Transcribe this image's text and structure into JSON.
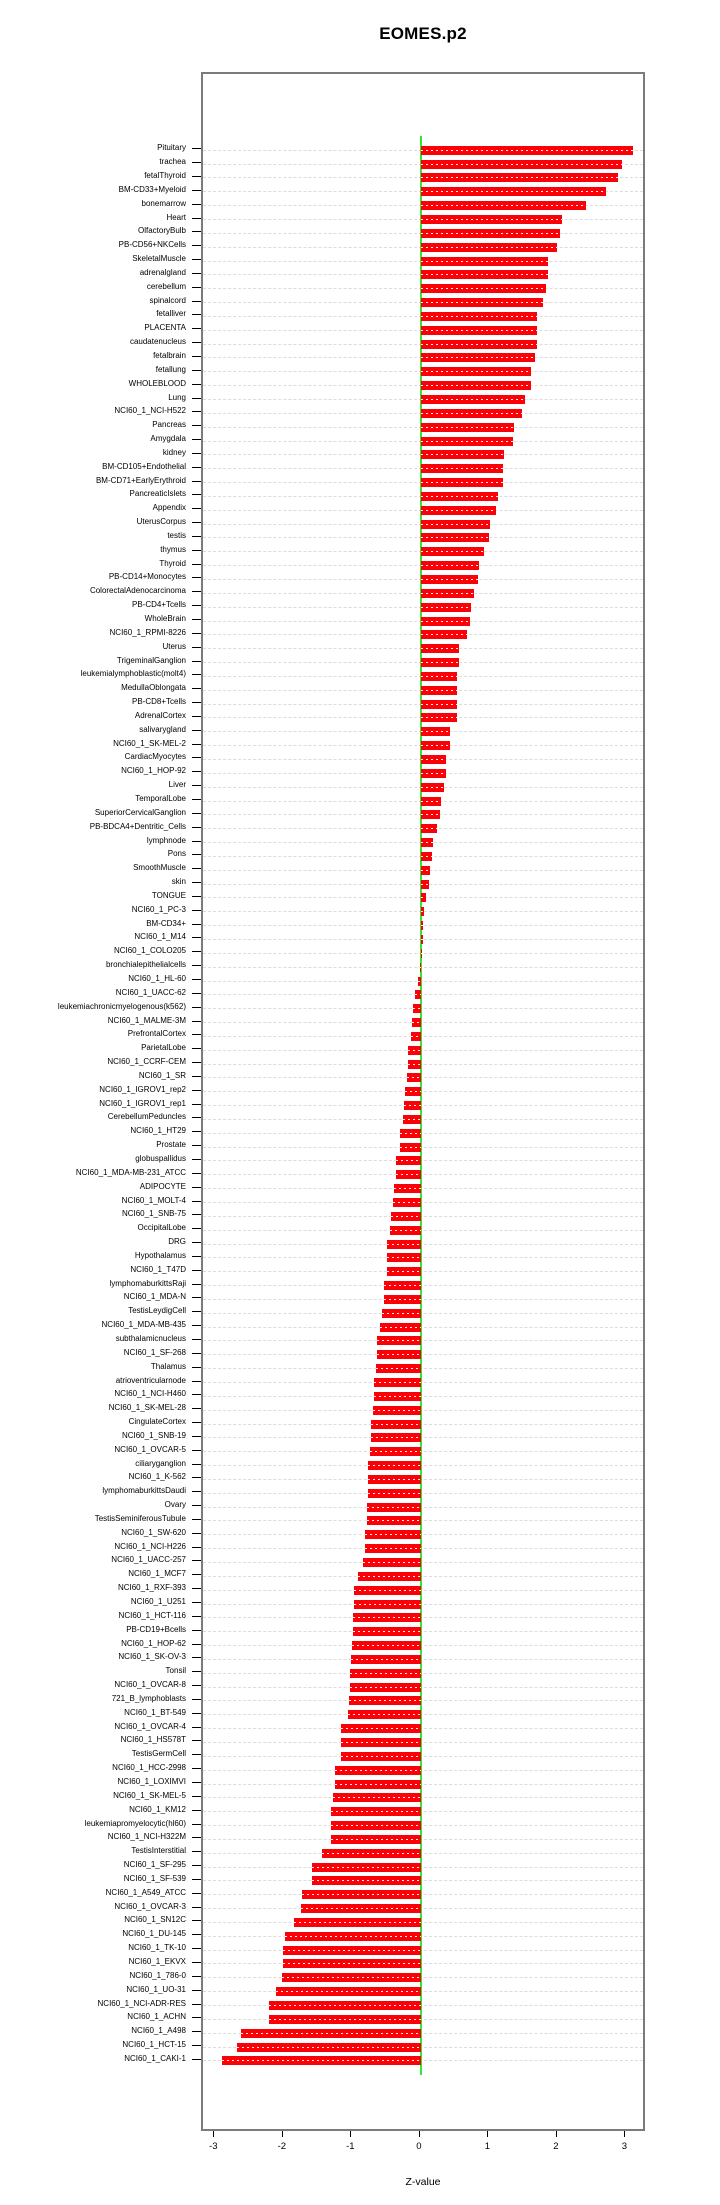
{
  "chart_data": {
    "type": "bar",
    "orientation": "horizontal",
    "title": "EOMES.p2",
    "xlabel": "Z-value",
    "ylabel": "",
    "xlim": [
      -3.18,
      3.3
    ],
    "x_ticks": [
      -3,
      -2,
      -1,
      0,
      1,
      2,
      3
    ],
    "x_tick_labels": [
      "-3",
      "-2",
      "-1",
      "0",
      "1",
      "2",
      "3"
    ],
    "grid": "dashed horizontal per-category lines",
    "legend": "none",
    "bar_color": "#fb0007",
    "zero_line_color": "#33e633",
    "grid_color": "#dcdcdc",
    "frame_color": "#7b7b7b",
    "categories": [
      "Pituitary",
      "trachea",
      "fetalThyroid",
      "BM-CD33+Myeloid",
      "bonemarrow",
      "Heart",
      "OlfactoryBulb",
      "PB-CD56+NKCells",
      "SkeletalMuscle",
      "adrenalgland",
      "cerebellum",
      "spinalcord",
      "fetalliver",
      "PLACENTA",
      "caudatenucleus",
      "fetalbrain",
      "fetallung",
      "WHOLEBLOOD",
      "Lung",
      "NCI60_1_NCI-H522",
      "Pancreas",
      "Amygdala",
      "kidney",
      "BM-CD105+Endothelial",
      "BM-CD71+EarlyErythroid",
      "PancreaticIslets",
      "Appendix",
      "UterusCorpus",
      "testis",
      "thymus",
      "Thyroid",
      "PB-CD14+Monocytes",
      "ColorectalAdenocarcinoma",
      "PB-CD4+Tcells",
      "WholeBrain",
      "NCI60_1_RPMI-8226",
      "Uterus",
      "TrigeminalGanglion",
      "leukemialymphoblastic(molt4)",
      "MedullaOblongata",
      "PB-CD8+Tcells",
      "AdrenalCortex",
      "salivarygland",
      "NCI60_1_SK-MEL-2",
      "CardiacMyocytes",
      "NCI60_1_HOP-92",
      "Liver",
      "TemporalLobe",
      "SuperiorCervicalGanglion",
      "PB-BDCA4+Dentritic_Cells",
      "lymphnode",
      "Pons",
      "SmoothMuscle",
      "skin",
      "TONGUE",
      "NCI60_1_PC-3",
      "BM-CD34+",
      "NCI60_1_M14",
      "NCI60_1_COLO205",
      "bronchialepithelialcells",
      "NCI60_1_HL-60",
      "NCI60_1_UACC-62",
      "leukemiachronicmyelogenous(k562)",
      "NCI60_1_MALME-3M",
      "PrefrontalCortex",
      "ParietalLobe",
      "NCI60_1_CCRF-CEM",
      "NCI60_1_SR",
      "NCI60_1_IGROV1_rep2",
      "NCI60_1_IGROV1_rep1",
      "CerebellumPeduncles",
      "NCI60_1_HT29",
      "Prostate",
      "globuspallidus",
      "NCI60_1_MDA-MB-231_ATCC",
      "ADIPOCYTE",
      "NCI60_1_MOLT-4",
      "NCI60_1_SNB-75",
      "OccipitalLobe",
      "DRG",
      "Hypothalamus",
      "NCI60_1_T47D",
      "lymphomaburkittsRaji",
      "NCI60_1_MDA-N",
      "TestisLeydigCell",
      "NCI60_1_MDA-MB-435",
      "subthalamicnucleus",
      "NCI60_1_SF-268",
      "Thalamus",
      "atrioventricularnode",
      "NCI60_1_NCI-H460",
      "NCI60_1_SK-MEL-28",
      "CingulateCortex",
      "NCI60_1_SNB-19",
      "NCI60_1_OVCAR-5",
      "ciliaryganglion",
      "NCI60_1_K-562",
      "lymphomaburkittsDaudi",
      "Ovary",
      "TestisSeminiferousTubule",
      "NCI60_1_SW-620",
      "NCI60_1_NCI-H226",
      "NCI60_1_UACC-257",
      "NCI60_1_MCF7",
      "NCI60_1_RXF-393",
      "NCI60_1_U251",
      "NCI60_1_HCT-116",
      "PB-CD19+Bcells",
      "NCI60_1_HOP-62",
      "NCI60_1_SK-OV-3",
      "Tonsil",
      "NCI60_1_OVCAR-8",
      "721_B_lymphoblasts",
      "NCI60_1_BT-549",
      "NCI60_1_OVCAR-4",
      "NCI60_1_HS578T",
      "TestisGermCell",
      "NCI60_1_HCC-2998",
      "NCI60_1_LOXIMVI",
      "NCI60_1_SK-MEL-5",
      "NCI60_1_KM12",
      "leukemiapromyelocytic(hl60)",
      "NCI60_1_NCI-H322M",
      "TestisInterstitial",
      "NCI60_1_SF-295",
      "NCI60_1_SF-539",
      "NCI60_1_A549_ATCC",
      "NCI60_1_OVCAR-3",
      "NCI60_1_SN12C",
      "NCI60_1_DU-145",
      "NCI60_1_TK-10",
      "NCI60_1_EKVX",
      "NCI60_1_786-0",
      "NCI60_1_UO-31",
      "NCI60_1_NCI-ADR-RES",
      "NCI60_1_ACHN",
      "NCI60_1_A498",
      "NCI60_1_HCT-15",
      "NCI60_1_CAKI-1"
    ],
    "values": [
      3.1,
      2.93,
      2.87,
      2.7,
      2.41,
      2.06,
      2.03,
      1.98,
      1.86,
      1.85,
      1.82,
      1.78,
      1.7,
      1.7,
      1.69,
      1.67,
      1.61,
      1.6,
      1.52,
      1.47,
      1.36,
      1.35,
      1.21,
      1.2,
      1.2,
      1.12,
      1.1,
      1.01,
      1.0,
      0.92,
      0.85,
      0.83,
      0.77,
      0.73,
      0.72,
      0.67,
      0.56,
      0.56,
      0.52,
      0.52,
      0.52,
      0.52,
      0.42,
      0.42,
      0.37,
      0.36,
      0.34,
      0.3,
      0.28,
      0.23,
      0.18,
      0.16,
      0.13,
      0.12,
      0.07,
      0.04,
      0.03,
      0.03,
      0.01,
      -0.01,
      -0.04,
      -0.08,
      -0.12,
      -0.13,
      -0.14,
      -0.19,
      -0.19,
      -0.21,
      -0.23,
      -0.25,
      -0.26,
      -0.3,
      -0.31,
      -0.36,
      -0.37,
      -0.39,
      -0.41,
      -0.43,
      -0.45,
      -0.5,
      -0.5,
      -0.5,
      -0.54,
      -0.54,
      -0.57,
      -0.59,
      -0.64,
      -0.64,
      -0.66,
      -0.68,
      -0.69,
      -0.7,
      -0.73,
      -0.73,
      -0.75,
      -0.77,
      -0.77,
      -0.77,
      -0.78,
      -0.79,
      -0.81,
      -0.81,
      -0.84,
      -0.92,
      -0.97,
      -0.97,
      -0.99,
      -0.99,
      -1.01,
      -1.02,
      -1.03,
      -1.04,
      -1.05,
      -1.07,
      -1.16,
      -1.16,
      -1.16,
      -1.25,
      -1.26,
      -1.28,
      -1.31,
      -1.31,
      -1.31,
      -1.44,
      -1.59,
      -1.59,
      -1.73,
      -1.75,
      -1.85,
      -1.98,
      -2.01,
      -2.01,
      -2.03,
      -2.11,
      -2.21,
      -2.22,
      -2.62,
      -2.68,
      -2.9
    ]
  }
}
